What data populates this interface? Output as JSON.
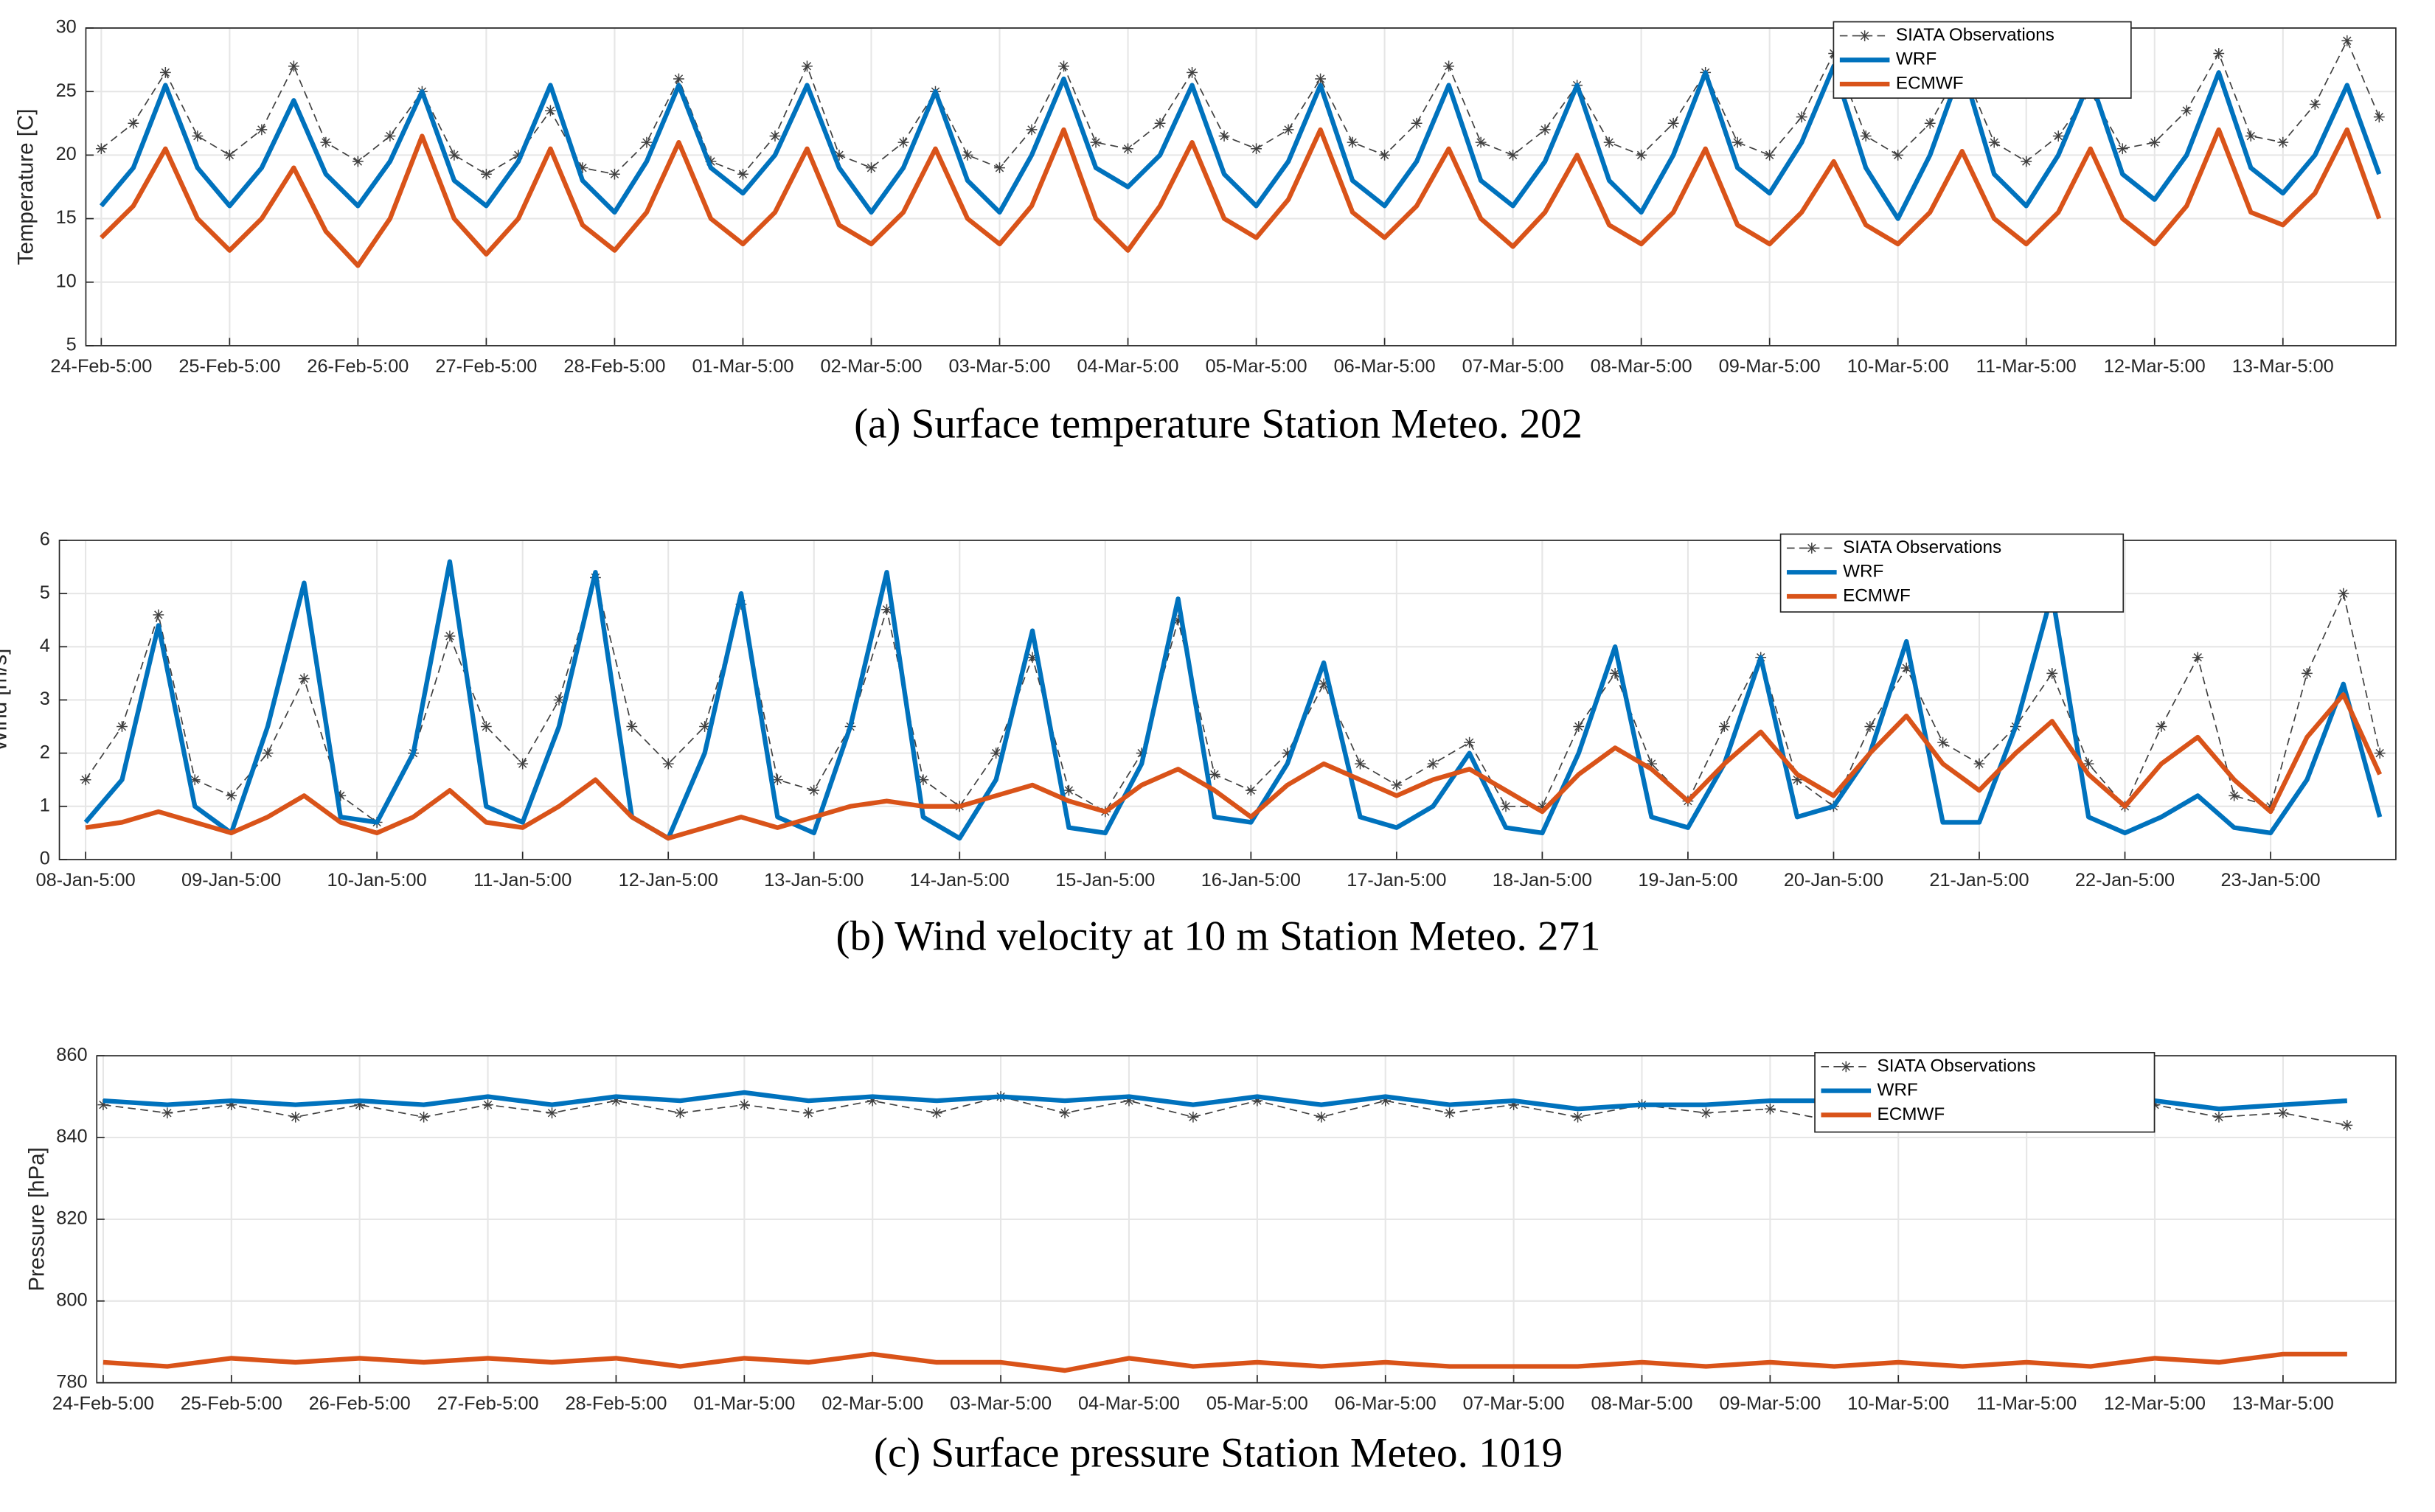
{
  "chart_data": [
    {
      "type": "line",
      "ylabel": "Temperature [C]",
      "caption": "(a) Surface temperature Station Meteo. 202",
      "xlim": [
        -0.12,
        17.88
      ],
      "xticks": [
        {
          "value": 0,
          "label": "24-Feb-5:00"
        },
        {
          "value": 1,
          "label": "25-Feb-5:00"
        },
        {
          "value": 2,
          "label": "26-Feb-5:00"
        },
        {
          "value": 3,
          "label": "27-Feb-5:00"
        },
        {
          "value": 4,
          "label": "28-Feb-5:00"
        },
        {
          "value": 5,
          "label": "01-Mar-5:00"
        },
        {
          "value": 6,
          "label": "02-Mar-5:00"
        },
        {
          "value": 7,
          "label": "03-Mar-5:00"
        },
        {
          "value": 8,
          "label": "04-Mar-5:00"
        },
        {
          "value": 9,
          "label": "05-Mar-5:00"
        },
        {
          "value": 10,
          "label": "06-Mar-5:00"
        },
        {
          "value": 11,
          "label": "07-Mar-5:00"
        },
        {
          "value": 12,
          "label": "08-Mar-5:00"
        },
        {
          "value": 13,
          "label": "09-Mar-5:00"
        },
        {
          "value": 14,
          "label": "10-Mar-5:00"
        },
        {
          "value": 15,
          "label": "11-Mar-5:00"
        },
        {
          "value": 16,
          "label": "12-Mar-5:00"
        },
        {
          "value": 17,
          "label": "13-Mar-5:00"
        }
      ],
      "ylim": [
        5,
        30
      ],
      "yticks": [
        5,
        10,
        15,
        20,
        25,
        30
      ],
      "grid": true,
      "legend": "upper right",
      "x": [
        0,
        0.25,
        0.5,
        0.75,
        1,
        1.25,
        1.5,
        1.75,
        2,
        2.25,
        2.5,
        2.75,
        3,
        3.25,
        3.5,
        3.75,
        4,
        4.25,
        4.5,
        4.75,
        5,
        5.25,
        5.5,
        5.75,
        6,
        6.25,
        6.5,
        6.75,
        7,
        7.25,
        7.5,
        7.75,
        8,
        8.25,
        8.5,
        8.75,
        9,
        9.25,
        9.5,
        9.75,
        10,
        10.25,
        10.5,
        10.75,
        11,
        11.25,
        11.5,
        11.75,
        12,
        12.25,
        12.5,
        12.75,
        13,
        13.25,
        13.5,
        13.75,
        14,
        14.25,
        14.5,
        14.75,
        15,
        15.25,
        15.5,
        15.75,
        16,
        16.25,
        16.5,
        16.75,
        17,
        17.25,
        17.5,
        17.75
      ],
      "series": [
        {
          "name": "SIATA Observations",
          "color": "#404040",
          "values": [
            20.5,
            22.5,
            26.5,
            21.5,
            20,
            22,
            27,
            21,
            19.5,
            21.5,
            25,
            20,
            18.5,
            20,
            23.5,
            19,
            18.5,
            21,
            26,
            19.5,
            18.5,
            21.5,
            27,
            20,
            19,
            21,
            25,
            20,
            19,
            22,
            27,
            21,
            20.5,
            22.5,
            26.5,
            21.5,
            20.5,
            22,
            26,
            21,
            20,
            22.5,
            27,
            21,
            20,
            22,
            25.5,
            21,
            20,
            22.5,
            26.5,
            21,
            20,
            23,
            28,
            21.5,
            20,
            22.5,
            27,
            21,
            19.5,
            21.5,
            25,
            20.5,
            21,
            23.5,
            28,
            21.5,
            21,
            24,
            29,
            23
          ]
        },
        {
          "name": "WRF",
          "color": "#0072bd",
          "values": [
            16,
            19,
            25.5,
            19,
            16,
            19,
            24.3,
            18.5,
            16,
            19.5,
            25,
            18,
            16,
            19.5,
            25.5,
            18,
            15.5,
            19.5,
            25.5,
            19,
            17,
            20,
            25.5,
            19,
            15.5,
            19,
            25,
            18,
            15.5,
            20,
            26,
            19,
            17.5,
            20,
            25.5,
            18.5,
            16,
            19.5,
            25.5,
            18,
            16,
            19.5,
            25.5,
            18,
            16,
            19.5,
            25.5,
            18,
            15.5,
            20,
            26.5,
            19,
            17,
            21,
            27,
            19,
            15,
            20,
            27,
            18.5,
            16,
            20,
            26,
            18.5,
            16.5,
            20,
            26.5,
            19,
            17,
            20,
            25.5,
            18.5
          ]
        },
        {
          "name": "ECMWF",
          "color": "#d95319",
          "values": [
            13.5,
            16,
            20.5,
            15,
            12.5,
            15,
            19,
            14,
            11.3,
            15,
            21.5,
            15,
            12.2,
            15,
            20.5,
            14.5,
            12.5,
            15.5,
            21,
            15,
            13,
            15.5,
            20.5,
            14.5,
            13,
            15.5,
            20.5,
            15,
            13,
            16,
            22,
            15,
            12.5,
            16,
            21,
            15,
            13.5,
            16.5,
            22,
            15.5,
            13.5,
            16,
            20.5,
            15,
            12.8,
            15.5,
            20,
            14.5,
            13,
            15.5,
            20.5,
            14.5,
            13,
            15.5,
            19.5,
            14.5,
            13,
            15.5,
            20.3,
            15,
            13,
            15.5,
            20.5,
            15,
            13,
            16,
            22,
            15.5,
            14.5,
            17,
            22,
            15
          ]
        }
      ]
    },
    {
      "type": "line",
      "ylabel": "Wind [m/s]",
      "caption": "(b) Wind velocity at 10 m Station Meteo. 271",
      "xlim": [
        -0.18,
        15.86
      ],
      "xticks": [
        {
          "value": 0,
          "label": "08-Jan-5:00"
        },
        {
          "value": 1,
          "label": "09-Jan-5:00"
        },
        {
          "value": 2,
          "label": "10-Jan-5:00"
        },
        {
          "value": 3,
          "label": "11-Jan-5:00"
        },
        {
          "value": 4,
          "label": "12-Jan-5:00"
        },
        {
          "value": 5,
          "label": "13-Jan-5:00"
        },
        {
          "value": 6,
          "label": "14-Jan-5:00"
        },
        {
          "value": 7,
          "label": "15-Jan-5:00"
        },
        {
          "value": 8,
          "label": "16-Jan-5:00"
        },
        {
          "value": 9,
          "label": "17-Jan-5:00"
        },
        {
          "value": 10,
          "label": "18-Jan-5:00"
        },
        {
          "value": 11,
          "label": "19-Jan-5:00"
        },
        {
          "value": 12,
          "label": "20-Jan-5:00"
        },
        {
          "value": 13,
          "label": "21-Jan-5:00"
        },
        {
          "value": 14,
          "label": "22-Jan-5:00"
        },
        {
          "value": 15,
          "label": "23-Jan-5:00"
        }
      ],
      "ylim": [
        0,
        6
      ],
      "yticks": [
        0,
        1,
        2,
        3,
        4,
        5,
        6
      ],
      "grid": true,
      "legend": "upper right",
      "x": [
        0,
        0.25,
        0.5,
        0.75,
        1,
        1.25,
        1.5,
        1.75,
        2,
        2.25,
        2.5,
        2.75,
        3,
        3.25,
        3.5,
        3.75,
        4,
        4.25,
        4.5,
        4.75,
        5,
        5.25,
        5.5,
        5.75,
        6,
        6.25,
        6.5,
        6.75,
        7,
        7.25,
        7.5,
        7.75,
        8,
        8.25,
        8.5,
        8.75,
        9,
        9.25,
        9.5,
        9.75,
        10,
        10.25,
        10.5,
        10.75,
        11,
        11.25,
        11.5,
        11.75,
        12,
        12.25,
        12.5,
        12.75,
        13,
        13.25,
        13.5,
        13.75,
        14,
        14.25,
        14.5,
        14.75,
        15,
        15.25,
        15.5,
        15.75
      ],
      "series": [
        {
          "name": "SIATA Observations",
          "color": "#404040",
          "values": [
            1.5,
            2.5,
            4.6,
            1.5,
            1.2,
            2,
            3.4,
            1.2,
            0.7,
            2,
            4.2,
            2.5,
            1.8,
            3,
            5.3,
            2.5,
            1.8,
            2.5,
            4.8,
            1.5,
            1.3,
            2.5,
            4.7,
            1.5,
            1,
            2,
            3.8,
            1.3,
            0.9,
            2,
            4.5,
            1.6,
            1.3,
            2,
            3.3,
            1.8,
            1.4,
            1.8,
            2.2,
            1,
            1,
            2.5,
            3.5,
            1.8,
            1.1,
            2.5,
            3.8,
            1.5,
            1,
            2.5,
            3.6,
            2.2,
            1.8,
            2.5,
            3.5,
            1.8,
            1,
            2.5,
            3.8,
            1.2,
            1,
            3.5,
            5,
            2
          ]
        },
        {
          "name": "WRF",
          "color": "#0072bd",
          "values": [
            0.7,
            1.5,
            4.4,
            1,
            0.5,
            2.5,
            5.2,
            0.8,
            0.7,
            2,
            5.6,
            1,
            0.7,
            2.5,
            5.4,
            0.8,
            0.4,
            2,
            5,
            0.8,
            0.5,
            2.5,
            5.4,
            0.8,
            0.4,
            1.5,
            4.3,
            0.6,
            0.5,
            1.8,
            4.9,
            0.8,
            0.7,
            1.8,
            3.7,
            0.8,
            0.6,
            1,
            2,
            0.6,
            0.5,
            2,
            4,
            0.8,
            0.6,
            1.8,
            3.8,
            0.8,
            1,
            2,
            4.1,
            0.7,
            0.7,
            2.5,
            5,
            0.8,
            0.5,
            0.8,
            1.2,
            0.6,
            0.5,
            1.5,
            3.3,
            0.8
          ]
        },
        {
          "name": "ECMWF",
          "color": "#d95319",
          "values": [
            0.6,
            0.7,
            0.9,
            0.7,
            0.5,
            0.8,
            1.2,
            0.7,
            0.5,
            0.8,
            1.3,
            0.7,
            0.6,
            1,
            1.5,
            0.8,
            0.4,
            0.6,
            0.8,
            0.6,
            0.8,
            1,
            1.1,
            1,
            1,
            1.2,
            1.4,
            1.1,
            0.9,
            1.4,
            1.7,
            1.3,
            0.8,
            1.4,
            1.8,
            1.5,
            1.2,
            1.5,
            1.7,
            1.3,
            0.9,
            1.6,
            2.1,
            1.7,
            1.1,
            1.8,
            2.4,
            1.6,
            1.2,
            2,
            2.7,
            1.8,
            1.3,
            2,
            2.6,
            1.6,
            1,
            1.8,
            2.3,
            1.5,
            0.9,
            2.3,
            3.1,
            1.6
          ]
        }
      ]
    },
    {
      "type": "line",
      "ylabel": "Pressure [hPa]",
      "caption": "(c) Surface pressure Station Meteo. 1019",
      "xlim": [
        -0.05,
        17.88
      ],
      "xticks": [
        {
          "value": 0,
          "label": "24-Feb-5:00"
        },
        {
          "value": 1,
          "label": "25-Feb-5:00"
        },
        {
          "value": 2,
          "label": "26-Feb-5:00"
        },
        {
          "value": 3,
          "label": "27-Feb-5:00"
        },
        {
          "value": 4,
          "label": "28-Feb-5:00"
        },
        {
          "value": 5,
          "label": "01-Mar-5:00"
        },
        {
          "value": 6,
          "label": "02-Mar-5:00"
        },
        {
          "value": 7,
          "label": "03-Mar-5:00"
        },
        {
          "value": 8,
          "label": "04-Mar-5:00"
        },
        {
          "value": 9,
          "label": "05-Mar-5:00"
        },
        {
          "value": 10,
          "label": "06-Mar-5:00"
        },
        {
          "value": 11,
          "label": "07-Mar-5:00"
        },
        {
          "value": 12,
          "label": "08-Mar-5:00"
        },
        {
          "value": 13,
          "label": "09-Mar-5:00"
        },
        {
          "value": 14,
          "label": "10-Mar-5:00"
        },
        {
          "value": 15,
          "label": "11-Mar-5:00"
        },
        {
          "value": 16,
          "label": "12-Mar-5:00"
        },
        {
          "value": 17,
          "label": "13-Mar-5:00"
        }
      ],
      "ylim": [
        780,
        860
      ],
      "yticks": [
        780,
        800,
        820,
        840,
        860
      ],
      "grid": true,
      "legend": "upper right",
      "x": [
        0,
        0.5,
        1,
        1.5,
        2,
        2.5,
        3,
        3.5,
        4,
        4.5,
        5,
        5.5,
        6,
        6.5,
        7,
        7.5,
        8,
        8.5,
        9,
        9.5,
        10,
        10.5,
        11,
        11.5,
        12,
        12.5,
        13,
        13.5,
        14,
        14.5,
        15,
        15.5,
        16,
        16.5,
        17,
        17.5
      ],
      "series": [
        {
          "name": "SIATA Observations",
          "color": "#404040",
          "values": [
            848,
            846,
            848,
            845,
            848,
            845,
            848,
            846,
            849,
            846,
            848,
            846,
            849,
            846,
            850,
            846,
            849,
            845,
            849,
            845,
            849,
            846,
            848,
            845,
            848,
            846,
            847,
            844,
            846,
            845,
            846,
            845,
            848,
            845,
            846,
            843
          ]
        },
        {
          "name": "WRF",
          "color": "#0072bd",
          "values": [
            849,
            848,
            849,
            848,
            849,
            848,
            850,
            848,
            850,
            849,
            851,
            849,
            850,
            849,
            850,
            849,
            850,
            848,
            850,
            848,
            850,
            848,
            849,
            847,
            848,
            848,
            849,
            849,
            848,
            847,
            848,
            847,
            849,
            847,
            848,
            849
          ]
        },
        {
          "name": "ECMWF",
          "color": "#d95319",
          "values": [
            785,
            784,
            786,
            785,
            786,
            785,
            786,
            785,
            786,
            784,
            786,
            785,
            787,
            785,
            785,
            783,
            786,
            784,
            785,
            784,
            785,
            784,
            784,
            784,
            785,
            784,
            785,
            784,
            785,
            784,
            785,
            784,
            786,
            785,
            787,
            787
          ]
        }
      ]
    }
  ]
}
